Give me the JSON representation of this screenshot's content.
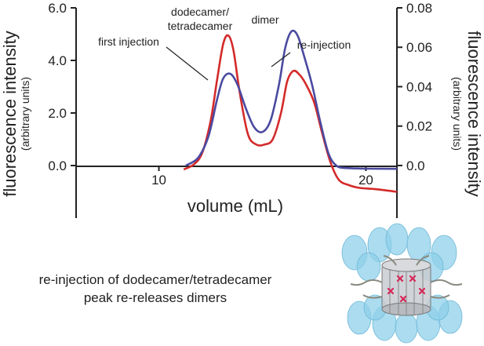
{
  "chart_data": {
    "type": "line",
    "xlabel": "volume (mL)",
    "ylabel_left": "fluorescence intensity",
    "ylabel_left_sub": "(arbitrary units)",
    "ylabel_right": "fluorescence intensity",
    "ylabel_right_sub": "(arbitrary units)",
    "xlim": [
      6,
      21.5
    ],
    "ylim_left": [
      -2,
      6
    ],
    "ylim_right": [
      -0.0267,
      0.08
    ],
    "x_ticks": [
      10,
      20
    ],
    "x_tick_labels": [
      "10",
      "20"
    ],
    "y_left_ticks": [
      0,
      2,
      4,
      6
    ],
    "y_left_tick_labels": [
      "0.0",
      "2.0",
      "4.0",
      "6.0"
    ],
    "y_right_ticks": [
      0,
      0.02,
      0.04,
      0.06,
      0.08
    ],
    "y_right_tick_labels": [
      "0.0",
      "0.02",
      "0.04",
      "0.06",
      "0.08"
    ],
    "grid": false,
    "series": [
      {
        "name": "first injection",
        "axis": "left",
        "color": "#d42a2a",
        "x": [
          11.2,
          11.7,
          12.1,
          12.5,
          12.8,
          13.1,
          13.35,
          13.6,
          13.9,
          14.3,
          14.7,
          15.1,
          15.5,
          15.9,
          16.2,
          16.5,
          16.8,
          17.1,
          17.5,
          17.9,
          18.3,
          18.7,
          19.2,
          19.7,
          20.5,
          21.5
        ],
        "y": [
          -0.15,
          0.05,
          0.5,
          1.7,
          3.2,
          4.6,
          4.95,
          4.4,
          2.8,
          1.2,
          0.8,
          0.8,
          1.0,
          2.0,
          3.2,
          3.6,
          3.45,
          3.1,
          2.4,
          1.2,
          0.1,
          -0.55,
          -0.75,
          -0.85,
          -0.9,
          -1.0
        ]
      },
      {
        "name": "re-injection",
        "axis": "right",
        "color": "#4a4aa0",
        "x": [
          11.3,
          11.9,
          12.4,
          12.8,
          13.1,
          13.45,
          13.8,
          14.2,
          14.6,
          15.0,
          15.4,
          15.8,
          16.1,
          16.4,
          16.7,
          17.0,
          17.4,
          17.8,
          18.2,
          18.6,
          19.1,
          19.6,
          20.2,
          21.5
        ],
        "y": [
          0.0,
          0.004,
          0.015,
          0.033,
          0.044,
          0.0465,
          0.041,
          0.029,
          0.0195,
          0.017,
          0.023,
          0.041,
          0.0595,
          0.068,
          0.066,
          0.056,
          0.041,
          0.022,
          0.006,
          -0.0003,
          -0.0013,
          -0.0015,
          -0.0016,
          -0.0017
        ]
      }
    ],
    "annotations": {
      "dodecamer": [
        "dodecamer/",
        "tetradecamer"
      ],
      "dimer": "dimer",
      "first_injection": "first injection",
      "re_injection": "re-injection"
    }
  },
  "caption": [
    "re-injection of dodecamer/tetradecamer",
    "peak re-releases dimers"
  ],
  "colors": {
    "red": "#d42a2a",
    "blue": "#4a4aa0",
    "axis": "#222222",
    "illustration": "#8fd0ea"
  }
}
